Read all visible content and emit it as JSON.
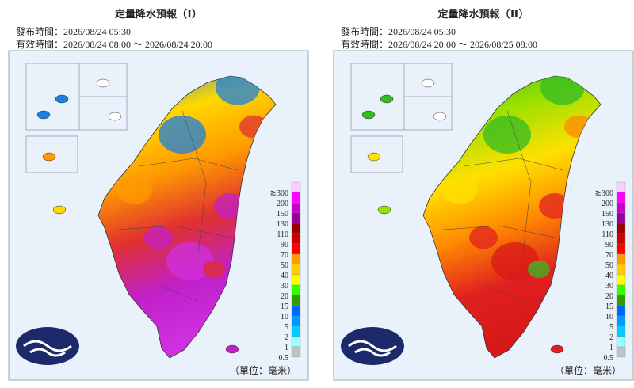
{
  "panels": [
    {
      "title": "定量降水預報（Ⅰ）",
      "issued": "發布時間：2026/08/24 05:30",
      "valid": "有效時間：2026/08/24 08:00 ～ 2026/08/24 20:00",
      "colors": [
        "#1e7fe0",
        "#ffd800",
        "#ff9a00",
        "#e03030",
        "#c020c8",
        "#d030e0"
      ]
    },
    {
      "title": "定量降水預報（Ⅱ）",
      "issued": "發布時間：2026/08/24 05:30",
      "valid": "有效時間：2026/08/24 20:00 ～ 2026/08/25 08:00",
      "colors": [
        "#33bb22",
        "#9ae000",
        "#ffe000",
        "#ff8a00",
        "#e02020",
        "#d81818"
      ]
    }
  ],
  "legend": {
    "labels": [
      "≧300",
      "200",
      "150",
      "130",
      "110",
      "90",
      "70",
      "50",
      "40",
      "30",
      "20",
      "15",
      "10",
      "5",
      "2",
      "1",
      "0.5"
    ],
    "colors": [
      "#ffccff",
      "#ff00ff",
      "#cc00cc",
      "#990099",
      "#990000",
      "#cc0000",
      "#ff0000",
      "#ff9900",
      "#ffcc00",
      "#ffff00",
      "#33ff00",
      "#339900",
      "#0066ff",
      "#0099ff",
      "#00ccff",
      "#99ffff",
      "#c1c1c1"
    ]
  },
  "unit": "（單位：毫米）"
}
